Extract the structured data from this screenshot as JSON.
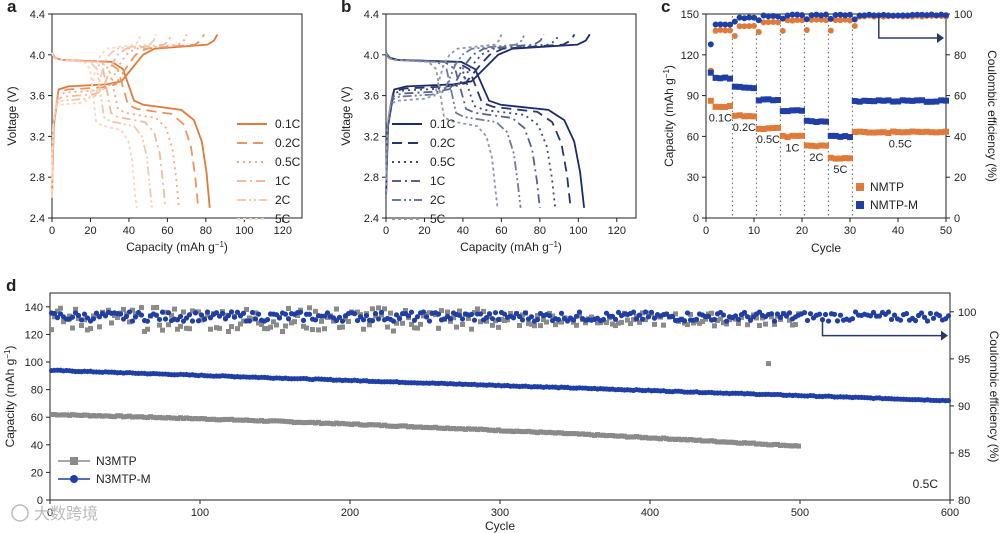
{
  "colors": {
    "orange_dark": "#e07a3a",
    "navy": "#1a2a6c",
    "blue": "#1f3ea6",
    "gray": "#8a8a8a",
    "axis": "#222222"
  },
  "watermark": "大数跨境",
  "chart_data": [
    {
      "id": "a",
      "panel_label": "a",
      "type": "line",
      "xlabel": "Capacity (mAh g",
      "xlabel_sup": "−1",
      "ylabel": "Voltage (V)",
      "xlim": [
        0,
        130
      ],
      "ylim": [
        2.4,
        4.4
      ],
      "xticks": [
        "0",
        "20",
        "40",
        "60",
        "80",
        "100",
        "120"
      ],
      "yticks": [
        "2.4",
        "2.8",
        "3.2",
        "3.6",
        "4.0",
        "4.4"
      ],
      "legend": [
        "0.1C",
        "0.2C",
        "0.5C",
        "1C",
        "2C",
        "5C"
      ],
      "legend_position": "right",
      "series": [
        {
          "name": "0.1C",
          "color": "#e07a3a",
          "dash": "",
          "discharge_cap": 82,
          "charge_cap": 86,
          "plateau_hi": 3.5,
          "plateau_lo": 3.7
        },
        {
          "name": "0.2C",
          "color": "#ea9563",
          "dash": "10,6",
          "discharge_cap": 76,
          "charge_cap": 79,
          "plateau_hi": 3.46,
          "plateau_lo": 3.67
        },
        {
          "name": "0.5C",
          "color": "#efac83",
          "dash": "2,4",
          "discharge_cap": 66,
          "charge_cap": 70,
          "plateau_hi": 3.42,
          "plateau_lo": 3.64
        },
        {
          "name": "1C",
          "color": "#f2bb99",
          "dash": "9,4,2,4",
          "discharge_cap": 59,
          "charge_cap": 62,
          "plateau_hi": 3.38,
          "plateau_lo": 3.6
        },
        {
          "name": "2C",
          "color": "#f5c9ad",
          "dash": "9,3,2,3,2,3",
          "discharge_cap": 52,
          "charge_cap": 54,
          "plateau_hi": 3.34,
          "plateau_lo": 3.56
        },
        {
          "name": "5C",
          "color": "#f8d7c4",
          "dash": "3,3",
          "discharge_cap": 44,
          "charge_cap": 46,
          "plateau_hi": 3.3,
          "plateau_lo": 3.52
        }
      ]
    },
    {
      "id": "b",
      "panel_label": "b",
      "type": "line",
      "xlabel": "Capacity (mAh g",
      "xlabel_sup": "−1",
      "ylabel": "Voltage (V)",
      "xlim": [
        0,
        130
      ],
      "ylim": [
        2.4,
        4.4
      ],
      "xticks": [
        "0",
        "20",
        "40",
        "60",
        "80",
        "100",
        "120"
      ],
      "yticks": [
        "2.4",
        "2.8",
        "3.2",
        "3.6",
        "4.0",
        "4.4"
      ],
      "legend": [
        "0.1C",
        "0.2C",
        "0.5C",
        "1C",
        "2C",
        "5C"
      ],
      "legend_position": "center",
      "series": [
        {
          "name": "0.1C",
          "color": "#1a2a6c",
          "dash": "",
          "discharge_cap": 103,
          "charge_cap": 106,
          "plateau_hi": 3.5,
          "plateau_lo": 3.7
        },
        {
          "name": "0.2C",
          "color": "#24356f",
          "dash": "10,6",
          "discharge_cap": 96,
          "charge_cap": 98,
          "plateau_hi": 3.48,
          "plateau_lo": 3.68
        },
        {
          "name": "0.5C",
          "color": "#3a4a7e",
          "dash": "2,4",
          "discharge_cap": 88,
          "charge_cap": 90,
          "plateau_hi": 3.45,
          "plateau_lo": 3.66
        },
        {
          "name": "1C",
          "color": "#56628d",
          "dash": "9,4,2,4",
          "discharge_cap": 80,
          "charge_cap": 82,
          "plateau_hi": 3.42,
          "plateau_lo": 3.63
        },
        {
          "name": "2C",
          "color": "#707a9c",
          "dash": "9,3,2,3,2,3",
          "discharge_cap": 70,
          "charge_cap": 72,
          "plateau_hi": 3.38,
          "plateau_lo": 3.6
        },
        {
          "name": "5C",
          "color": "#9098b0",
          "dash": "3,3",
          "discharge_cap": 58,
          "charge_cap": 60,
          "plateau_hi": 3.34,
          "plateau_lo": 3.56
        }
      ]
    },
    {
      "id": "c",
      "panel_label": "c",
      "type": "scatter",
      "xlabel": "Cycle",
      "ylabel": "Capacity (mAh g",
      "ylabel_sup": "−1",
      "y2label": "Coulombic efficiency (%)",
      "xlim": [
        0,
        50
      ],
      "ylim": [
        0,
        150
      ],
      "y2lim": [
        0,
        100
      ],
      "xticks": [
        "0",
        "10",
        "20",
        "30",
        "40",
        "50"
      ],
      "yticks": [
        "0",
        "30",
        "60",
        "90",
        "120",
        "150"
      ],
      "y2ticks": [
        "0",
        "20",
        "40",
        "60",
        "80",
        "100"
      ],
      "grid": false,
      "rate_segments": [
        {
          "label": "0.1C",
          "cycles": [
            1,
            5
          ]
        },
        {
          "label": "0.2C",
          "cycles": [
            6,
            10
          ]
        },
        {
          "label": "0.5C",
          "cycles": [
            11,
            15
          ]
        },
        {
          "label": "1C",
          "cycles": [
            16,
            20
          ]
        },
        {
          "label": "2C",
          "cycles": [
            21,
            25
          ]
        },
        {
          "label": "5C",
          "cycles": [
            26,
            30
          ]
        },
        {
          "label": "0.5C",
          "cycles": [
            31,
            50
          ]
        }
      ],
      "divider_cycles": [
        5.5,
        10.5,
        15.5,
        20.5,
        25.5,
        30.5
      ],
      "legend": [
        "NMTP",
        "NMTP-M"
      ],
      "legend_position": "bottom-right",
      "series": [
        {
          "name": "NMTP",
          "color": "#e07a3a",
          "capacity_levels": [
            82,
            75,
            66,
            60,
            53,
            44,
            63
          ],
          "ce_levels": [
            92,
            94,
            96,
            97,
            97,
            97,
            99
          ]
        },
        {
          "name": "NMTP-M",
          "color": "#1f3ea6",
          "capacity_levels": [
            103,
            96,
            87,
            79,
            71,
            60,
            86
          ],
          "ce_levels": [
            95,
            98,
            99,
            99.5,
            99.5,
            99.5,
            99.5
          ]
        }
      ]
    },
    {
      "id": "d",
      "panel_label": "d",
      "type": "scatter",
      "xlabel": "Cycle",
      "ylabel": "Capacity (mAh g",
      "ylabel_sup": "−1",
      "y2label": "Coulombic efficiency (%)",
      "xlim": [
        0,
        600
      ],
      "ylim": [
        0,
        150
      ],
      "y2lim": [
        80,
        102
      ],
      "xticks": [
        "0",
        "100",
        "200",
        "300",
        "400",
        "500",
        "600"
      ],
      "yticks": [
        "0",
        "20",
        "40",
        "60",
        "80",
        "100",
        "120",
        "140"
      ],
      "y2ticks": [
        "80",
        "85",
        "90",
        "95",
        "100"
      ],
      "annotation": "0.5C",
      "legend": [
        "N3MTP",
        "N3MTP-M"
      ],
      "legend_position": "bottom-left",
      "series": [
        {
          "name": "N3MTP",
          "color": "#8a8a8a",
          "cycles_end": 500,
          "capacity_start": 62,
          "capacity_end": 39,
          "ce_mean": 99.2
        },
        {
          "name": "N3MTP-M",
          "color": "#1f3ea6",
          "cycles_end": 600,
          "capacity_start": 94,
          "capacity_end": 72,
          "ce_mean": 99.5
        }
      ]
    }
  ]
}
